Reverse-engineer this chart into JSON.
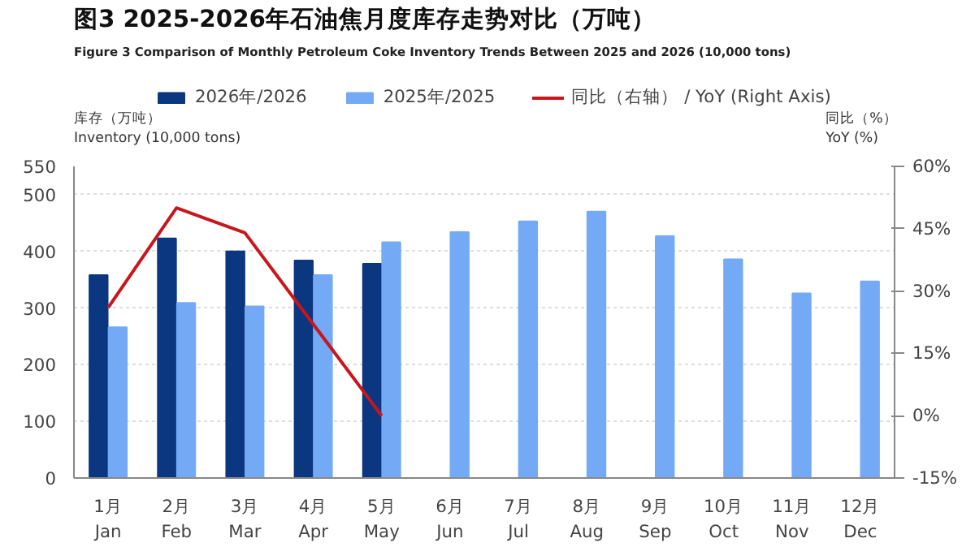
{
  "chart_data": {
    "type": "bar",
    "title": "图3  2025-2026年石油焦月度库存走势对比（万吨）",
    "subtitle": "Figure 3   Comparison of Monthly Petroleum Coke Inventory Trends Between 2025 and 2026 (10,000 tons)",
    "ylabel": "库存（万吨）\nInventory (10,000 tons)",
    "y2label": "同比（%）\nYoY (%)",
    "categories": [
      "1月\nJan",
      "2月\nFeb",
      "3月\nMar",
      "4月\nApr",
      "5月\nMay",
      "6月\nJun",
      "7月\nJul",
      "8月\nAug",
      "9月\nSep",
      "10月\nOct",
      "11月\nNov",
      "12月\nDec"
    ],
    "series": [
      {
        "name": "2026年/2026",
        "color": "#0b3680",
        "values": [
          358,
          423,
          400,
          384,
          378,
          null,
          null,
          null,
          null,
          null,
          null,
          null
        ]
      },
      {
        "name": "2025年/2025",
        "color": "#74aaf5",
        "values": [
          266,
          309,
          303,
          358,
          416,
          434,
          453,
          470,
          427,
          386,
          326,
          347
        ]
      },
      {
        "name": "同比（右轴） / YoY (Right Axis)",
        "type": "line",
        "axis": "y2",
        "color": "#c8161d",
        "values": [
          26,
          50,
          44,
          22,
          0,
          null,
          null,
          null,
          null,
          null,
          null,
          null
        ]
      }
    ],
    "ylim": [
      0,
      550
    ],
    "yticks": [
      0,
      100,
      200,
      300,
      400,
      500,
      550
    ],
    "y2lim": [
      -15,
      60
    ],
    "y2ticks": [
      {
        "value": -15,
        "label": "-15%"
      },
      {
        "value": 0,
        "label": "0%"
      },
      {
        "value": 15,
        "label": "15%"
      },
      {
        "value": 30,
        "label": "30%"
      },
      {
        "value": 45,
        "label": "45%"
      },
      {
        "value": 60,
        "label": "60%"
      }
    ],
    "grid": "y",
    "legend": "top"
  }
}
